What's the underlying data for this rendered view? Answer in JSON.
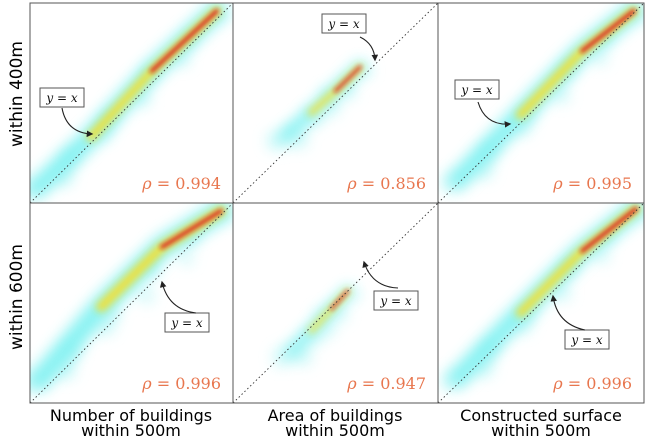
{
  "chart_data": {
    "type": "heatmap",
    "rows": [
      "within 400m",
      "within 600m"
    ],
    "columns": [
      {
        "line1": "Number of buildings",
        "line2": "within 500m"
      },
      {
        "line1": "Area of buildings",
        "line2": "within 500m"
      },
      {
        "line1": "Constructed surface",
        "line2": "within 500m"
      }
    ],
    "reference_line_label": "y = x",
    "correlation_symbol": "ρ",
    "panels": [
      {
        "row": 0,
        "col": 0,
        "rho": "0.994",
        "x_range": [
          0,
          1
        ],
        "y_range": [
          0,
          1
        ],
        "ridge": [
          [
            0.04,
            0.08
          ],
          [
            0.3,
            0.33
          ],
          [
            0.6,
            0.66
          ],
          [
            0.92,
            0.96
          ]
        ]
      },
      {
        "row": 0,
        "col": 1,
        "rho": "0.856",
        "x_range": [
          0,
          1
        ],
        "y_range": [
          0,
          1
        ],
        "ridge": [
          [
            0.25,
            0.33
          ],
          [
            0.38,
            0.45
          ],
          [
            0.5,
            0.56
          ],
          [
            0.62,
            0.68
          ]
        ]
      },
      {
        "row": 0,
        "col": 2,
        "rho": "0.995",
        "x_range": [
          0,
          1
        ],
        "y_range": [
          0,
          1
        ],
        "ridge": [
          [
            0.1,
            0.12
          ],
          [
            0.4,
            0.44
          ],
          [
            0.7,
            0.76
          ],
          [
            0.95,
            0.96
          ]
        ]
      },
      {
        "row": 1,
        "col": 0,
        "rho": "0.996",
        "x_range": [
          0,
          1
        ],
        "y_range": [
          0,
          1
        ],
        "ridge": [
          [
            0.05,
            0.12
          ],
          [
            0.35,
            0.48
          ],
          [
            0.65,
            0.78
          ],
          [
            0.94,
            0.96
          ]
        ]
      },
      {
        "row": 1,
        "col": 1,
        "rho": "0.947",
        "x_range": [
          0,
          1
        ],
        "y_range": [
          0,
          1
        ],
        "ridge": [
          [
            0.28,
            0.25
          ],
          [
            0.38,
            0.36
          ],
          [
            0.48,
            0.47
          ],
          [
            0.56,
            0.56
          ]
        ]
      },
      {
        "row": 1,
        "col": 2,
        "rho": "0.996",
        "x_range": [
          0,
          1
        ],
        "y_range": [
          0,
          1
        ],
        "ridge": [
          [
            0.1,
            0.13
          ],
          [
            0.4,
            0.45
          ],
          [
            0.7,
            0.76
          ],
          [
            0.96,
            0.97
          ]
        ]
      }
    ],
    "colors": {
      "frame": "#555555",
      "diagonal": "#333333",
      "rho_text": "#e8764e",
      "low": "#74f0f0",
      "mid": "#f6df2e",
      "high": "#d8141c"
    },
    "colormap": "cyan-yellow-red",
    "grid": false
  }
}
